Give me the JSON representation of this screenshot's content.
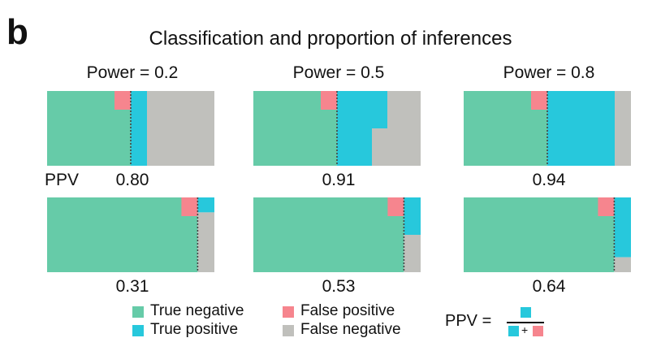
{
  "panel_letter": "b",
  "chart_data": {
    "type": "mosaic",
    "title": "Classification and proportion of inferences",
    "columns": [
      "Power = 0.2",
      "Power = 0.5",
      "Power = 0.8"
    ],
    "ppv_label": "PPV",
    "colors": {
      "true_negative": "#66CBA8",
      "true_positive": "#27C8DC",
      "false_positive": "#F6858E",
      "false_negative": "#C0C0BC"
    },
    "panels": [
      {
        "row": 0,
        "column": 0,
        "power": 0.2,
        "prior_true_fraction": 0.5,
        "alpha": 0.05,
        "ppv": "0.80"
      },
      {
        "row": 0,
        "column": 1,
        "power": 0.5,
        "prior_true_fraction": 0.5,
        "alpha": 0.05,
        "ppv": "0.91"
      },
      {
        "row": 0,
        "column": 2,
        "power": 0.8,
        "prior_true_fraction": 0.5,
        "alpha": 0.05,
        "ppv": "0.94"
      },
      {
        "row": 1,
        "column": 0,
        "power": 0.2,
        "prior_true_fraction": 0.1,
        "alpha": 0.05,
        "ppv": "0.31"
      },
      {
        "row": 1,
        "column": 1,
        "power": 0.5,
        "prior_true_fraction": 0.1,
        "alpha": 0.05,
        "ppv": "0.53"
      },
      {
        "row": 1,
        "column": 2,
        "power": 0.8,
        "prior_true_fraction": 0.1,
        "alpha": 0.05,
        "ppv": "0.64"
      }
    ],
    "legend": {
      "true_negative": "True negative",
      "true_positive": "True positive",
      "false_positive": "False positive",
      "false_negative": "False negative"
    },
    "formula": {
      "lhs": "PPV =",
      "operator": "+",
      "numerator": [
        "true_positive"
      ],
      "denominator": [
        "true_positive",
        "false_positive"
      ]
    }
  }
}
